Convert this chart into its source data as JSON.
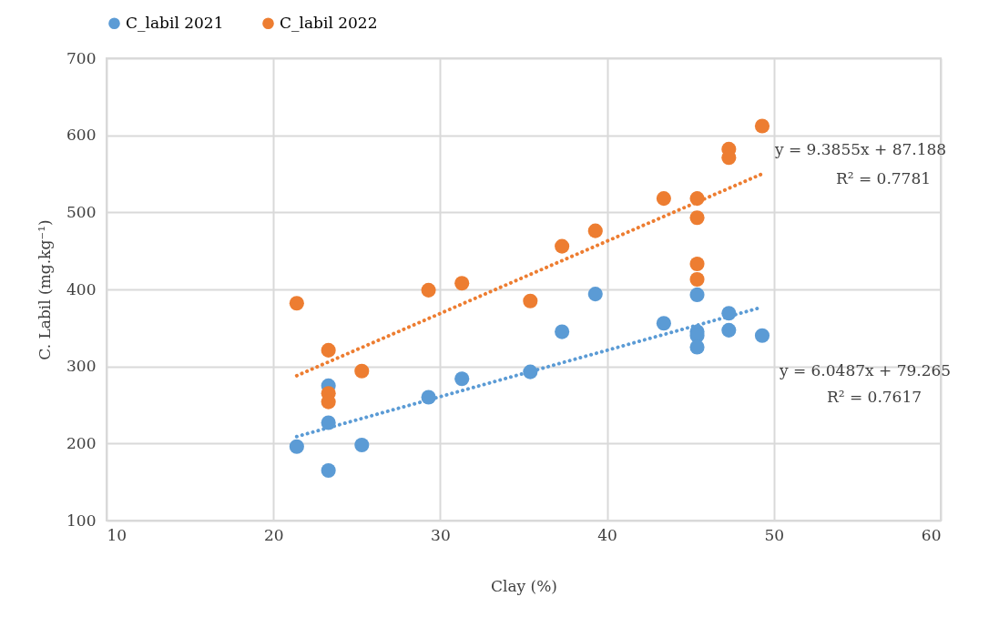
{
  "chart_data": {
    "type": "scatter",
    "xlabel": "Clay (%)",
    "ylabel": "C. Labil (mg.kg⁻¹)",
    "xlim": [
      10,
      60
    ],
    "xticks": [
      10,
      20,
      30,
      40,
      50,
      60
    ],
    "ylim": [
      100,
      700
    ],
    "yticks": [
      100,
      200,
      300,
      400,
      500,
      600,
      700
    ],
    "grid": true,
    "legend": "top",
    "marker": "circle",
    "series": [
      {
        "name": "C_labil 2021",
        "color": "#5b9bd5",
        "x": [
          21.4,
          23.3,
          23.3,
          23.3,
          25.3,
          29.3,
          31.3,
          35.4,
          37.3,
          39.3,
          43.4,
          45.4,
          45.4,
          45.4,
          45.4,
          47.3,
          47.3,
          49.3
        ],
        "values": [
          196,
          275,
          227,
          165,
          198,
          260,
          284,
          293,
          345,
          394,
          356,
          393,
          345,
          340,
          325,
          369,
          347,
          340
        ]
      },
      {
        "name": "C_labil 2022",
        "color": "#ed7d31",
        "x": [
          21.4,
          23.3,
          23.3,
          23.3,
          25.3,
          29.3,
          31.3,
          35.4,
          37.3,
          39.3,
          43.4,
          45.4,
          45.4,
          45.4,
          45.4,
          47.3,
          47.3,
          49.3
        ],
        "values": [
          382,
          321,
          265,
          254,
          294,
          399,
          408,
          385,
          456,
          476,
          518,
          518,
          493,
          433,
          413,
          582,
          571,
          612
        ]
      },
      {
        "type": "line",
        "marker": "none",
        "line_style": "dotted",
        "color": "#5b9bd5",
        "x": [
          21.4,
          49.3
        ],
        "values": [
          209,
          377
        ]
      },
      {
        "type": "line",
        "marker": "none",
        "line_style": "dotted",
        "color": "#ed7d31",
        "x": [
          21.4,
          49.3
        ],
        "values": [
          288,
          550
        ]
      }
    ],
    "annotations": [
      "y = 9.3855x + 87.188",
      "R² = 0.7781",
      "y = 6.0487x + 79.265",
      "R² = 0.7617"
    ]
  }
}
